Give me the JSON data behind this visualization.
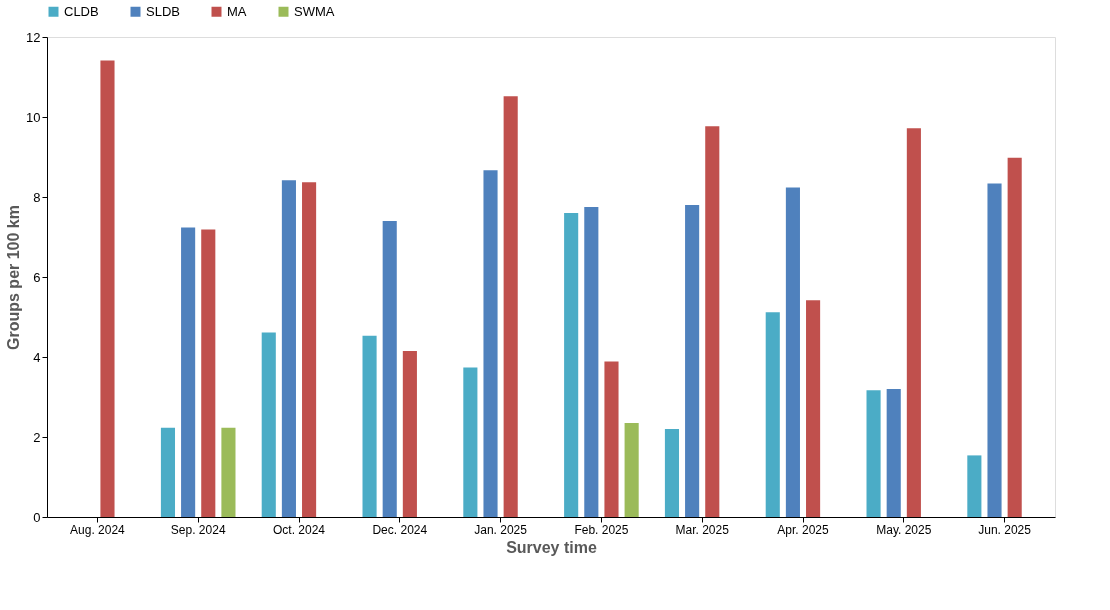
{
  "chart_data": {
    "type": "bar",
    "xlabel": "Survey time",
    "ylabel": "Groups per 100 km",
    "categories": [
      "Aug. 2024",
      "Sep. 2024",
      "Oct. 2024",
      "Dec. 2024",
      "Jan. 2025",
      "Feb. 2025",
      "Mar. 2025",
      "Apr. 2025",
      "May. 2025",
      "Jun. 2025"
    ],
    "series": [
      {
        "name": "CLDB",
        "color": "#4bacc6",
        "values": [
          null,
          2.23,
          4.61,
          4.53,
          3.74,
          7.6,
          2.2,
          5.12,
          3.17,
          1.54
        ]
      },
      {
        "name": "SLDB",
        "color": "#4f81bd",
        "values": [
          null,
          7.24,
          8.42,
          7.4,
          8.67,
          7.75,
          7.8,
          8.24,
          3.2,
          8.34
        ]
      },
      {
        "name": "MA",
        "color": "#c0504d",
        "values": [
          11.41,
          7.19,
          8.37,
          4.15,
          10.52,
          3.89,
          9.77,
          5.42,
          9.72,
          8.98
        ]
      },
      {
        "name": "SWMA",
        "color": "#9bbb59",
        "values": [
          null,
          2.23,
          null,
          null,
          null,
          2.35,
          null,
          null,
          null,
          null
        ]
      }
    ],
    "ylim": [
      0,
      12
    ],
    "yticks": [
      0,
      2,
      4,
      6,
      8,
      10,
      12
    ],
    "grid": false,
    "legend": "top"
  }
}
